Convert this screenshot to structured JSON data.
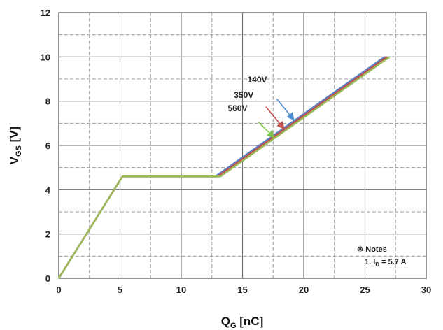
{
  "chart_data": {
    "type": "line",
    "xlabel": {
      "main": "Q",
      "sub": "G",
      "unit": " [nC]"
    },
    "ylabel": {
      "main": "V",
      "sub": "GS",
      "unit": " [V]"
    },
    "xlim": [
      0,
      30
    ],
    "ylim": [
      0,
      12
    ],
    "xticks": [
      0,
      5,
      10,
      15,
      20,
      25,
      30
    ],
    "yticks": [
      0,
      2,
      4,
      6,
      8,
      10,
      12
    ],
    "grid": {
      "major": true,
      "minor_dashed": true
    },
    "series": [
      {
        "name": "140V",
        "color": "#5b7fc4",
        "points": [
          [
            0,
            0
          ],
          [
            5.2,
            4.6
          ],
          [
            12.8,
            4.6
          ],
          [
            26.6,
            10
          ]
        ]
      },
      {
        "name": "350V",
        "color": "#c0504d",
        "points": [
          [
            0,
            0
          ],
          [
            5.2,
            4.6
          ],
          [
            13.0,
            4.6
          ],
          [
            26.8,
            10
          ]
        ]
      },
      {
        "name": "560V",
        "color": "#9bbb59",
        "points": [
          [
            0,
            0
          ],
          [
            5.2,
            4.6
          ],
          [
            13.2,
            4.6
          ],
          [
            27.0,
            10
          ]
        ]
      }
    ],
    "annotations": [
      {
        "label": "140V",
        "color": "#4f8fd0",
        "text_at": [
          15.4,
          8.85
        ],
        "arrow_from": [
          17.8,
          8.1
        ],
        "arrow_to": [
          19.2,
          7.15
        ]
      },
      {
        "label": "350V",
        "color": "#c0504d",
        "text_at": [
          14.3,
          8.15
        ],
        "arrow_from": [
          16.9,
          7.75
        ],
        "arrow_to": [
          18.4,
          6.75
        ]
      },
      {
        "label": "560V",
        "color": "#7fc24a",
        "text_at": [
          13.8,
          7.55
        ],
        "arrow_from": [
          16.3,
          7.05
        ],
        "arrow_to": [
          17.6,
          6.35
        ]
      }
    ],
    "notes": {
      "title": "※ Notes",
      "line_prefix": "1. I",
      "line_sub": "D",
      "line_suffix": " = 5.7 A"
    }
  }
}
